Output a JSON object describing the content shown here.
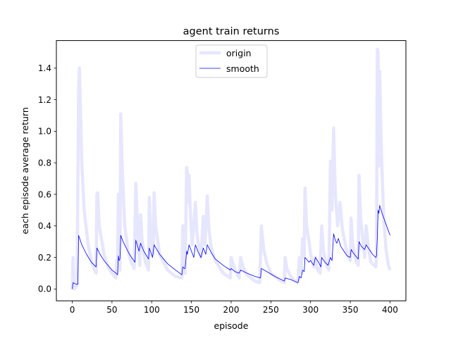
{
  "chart_data": {
    "type": "line",
    "title": "agent train returns",
    "xlabel": "episode",
    "ylabel": "each episode average return",
    "xlim": [
      -20,
      420
    ],
    "ylim": [
      -0.075,
      1.575
    ],
    "xticks": [
      0,
      50,
      100,
      150,
      200,
      250,
      300,
      350,
      400
    ],
    "yticks": [
      0.0,
      0.2,
      0.4,
      0.6,
      0.8,
      1.0,
      1.2,
      1.4
    ],
    "grid": false,
    "legend_position": "top-center",
    "series": [
      {
        "name": "origin",
        "color": "#e6e6ff",
        "points": [
          [
            0,
            0.0
          ],
          [
            1,
            0.2
          ],
          [
            2,
            0.0
          ],
          [
            6,
            0.02
          ],
          [
            8,
            1.28
          ],
          [
            9,
            1.4
          ],
          [
            10,
            1.2
          ],
          [
            12,
            0.8
          ],
          [
            15,
            0.5
          ],
          [
            20,
            0.28
          ],
          [
            25,
            0.16
          ],
          [
            30,
            0.1
          ],
          [
            31,
            0.6
          ],
          [
            32,
            0.61
          ],
          [
            34,
            0.4
          ],
          [
            40,
            0.22
          ],
          [
            45,
            0.14
          ],
          [
            50,
            0.1
          ],
          [
            55,
            0.07
          ],
          [
            56,
            0.18
          ],
          [
            57,
            0.1
          ],
          [
            58,
            0.6
          ],
          [
            59,
            0.18
          ],
          [
            60,
            0.12
          ],
          [
            61,
            1.11
          ],
          [
            63,
            0.75
          ],
          [
            66,
            0.4
          ],
          [
            70,
            0.25
          ],
          [
            74,
            0.17
          ],
          [
            78,
            0.13
          ],
          [
            80,
            0.67
          ],
          [
            82,
            0.42
          ],
          [
            84,
            0.22
          ],
          [
            85,
            0.15
          ],
          [
            86,
            0.47
          ],
          [
            88,
            0.3
          ],
          [
            92,
            0.17
          ],
          [
            96,
            0.12
          ],
          [
            97,
            0.58
          ],
          [
            99,
            0.35
          ],
          [
            102,
            0.22
          ],
          [
            103,
            0.61
          ],
          [
            105,
            0.4
          ],
          [
            110,
            0.22
          ],
          [
            120,
            0.12
          ],
          [
            130,
            0.08
          ],
          [
            138,
            0.07
          ],
          [
            139,
            0.4
          ],
          [
            141,
            0.2
          ],
          [
            142,
            0.1
          ],
          [
            144,
            0.77
          ],
          [
            145,
            0.74
          ],
          [
            146,
            0.55
          ],
          [
            147,
            0.72
          ],
          [
            149,
            0.45
          ],
          [
            151,
            0.28
          ],
          [
            155,
            0.55
          ],
          [
            157,
            0.35
          ],
          [
            160,
            0.24
          ],
          [
            162,
            0.2
          ],
          [
            165,
            0.46
          ],
          [
            167,
            0.28
          ],
          [
            170,
            0.59
          ],
          [
            172,
            0.38
          ],
          [
            175,
            0.26
          ],
          [
            180,
            0.18
          ],
          [
            190,
            0.1
          ],
          [
            199,
            0.07
          ],
          [
            200,
            0.2
          ],
          [
            205,
            0.12
          ],
          [
            210,
            0.07
          ],
          [
            212,
            0.2
          ],
          [
            215,
            0.14
          ],
          [
            220,
            0.09
          ],
          [
            230,
            0.05
          ],
          [
            236,
            0.04
          ],
          [
            238,
            0.4
          ],
          [
            241,
            0.25
          ],
          [
            245,
            0.16
          ],
          [
            250,
            0.1
          ],
          [
            260,
            0.06
          ],
          [
            267,
            0.04
          ],
          [
            268,
            0.2
          ],
          [
            270,
            0.13
          ],
          [
            275,
            0.08
          ],
          [
            280,
            0.05
          ],
          [
            284,
            0.04
          ],
          [
            286,
            0.2
          ],
          [
            288,
            0.1
          ],
          [
            290,
            0.32
          ],
          [
            292,
            0.2
          ],
          [
            293,
            0.64
          ],
          [
            295,
            0.4
          ],
          [
            298,
            0.3
          ],
          [
            300,
            0.22
          ],
          [
            304,
            0.14
          ],
          [
            306,
            0.2
          ],
          [
            308,
            0.13
          ],
          [
            312,
            0.1
          ],
          [
            314,
            0.4
          ],
          [
            316,
            0.25
          ],
          [
            320,
            0.15
          ],
          [
            323,
            0.12
          ],
          [
            325,
            0.81
          ],
          [
            327,
            0.5
          ],
          [
            329,
            1.02
          ],
          [
            331,
            0.62
          ],
          [
            334,
            0.4
          ],
          [
            337,
            0.55
          ],
          [
            340,
            0.38
          ],
          [
            345,
            0.25
          ],
          [
            348,
            0.2
          ],
          [
            350,
            0.18
          ],
          [
            351,
            0.45
          ],
          [
            353,
            0.28
          ],
          [
            357,
            0.18
          ],
          [
            360,
            0.15
          ],
          [
            361,
            0.72
          ],
          [
            363,
            0.45
          ],
          [
            364,
            0.4
          ],
          [
            366,
            0.3
          ],
          [
            368,
            0.2
          ],
          [
            370,
            0.4
          ],
          [
            372,
            0.3
          ],
          [
            374,
            0.22
          ],
          [
            376,
            0.17
          ],
          [
            380,
            0.15
          ],
          [
            382,
            0.14
          ],
          [
            383,
            0.2
          ],
          [
            384,
            1.52
          ],
          [
            385,
            1.5
          ],
          [
            386,
            0.78
          ],
          [
            387,
            1.38
          ],
          [
            389,
            0.9
          ],
          [
            392,
            0.45
          ],
          [
            395,
            0.25
          ],
          [
            398,
            0.15
          ],
          [
            400,
            0.12
          ]
        ]
      },
      {
        "name": "smooth",
        "color": "#0000ff",
        "points": [
          [
            0,
            0.0
          ],
          [
            1,
            0.04
          ],
          [
            5,
            0.03
          ],
          [
            7,
            0.03
          ],
          [
            8,
            0.34
          ],
          [
            12,
            0.28
          ],
          [
            18,
            0.22
          ],
          [
            24,
            0.17
          ],
          [
            30,
            0.14
          ],
          [
            31,
            0.26
          ],
          [
            35,
            0.22
          ],
          [
            40,
            0.18
          ],
          [
            45,
            0.15
          ],
          [
            50,
            0.12
          ],
          [
            55,
            0.1
          ],
          [
            57,
            0.09
          ],
          [
            58,
            0.21
          ],
          [
            59,
            0.18
          ],
          [
            60,
            0.19
          ],
          [
            61,
            0.34
          ],
          [
            64,
            0.3
          ],
          [
            68,
            0.26
          ],
          [
            72,
            0.22
          ],
          [
            76,
            0.19
          ],
          [
            79,
            0.17
          ],
          [
            80,
            0.31
          ],
          [
            84,
            0.24
          ],
          [
            86,
            0.29
          ],
          [
            90,
            0.24
          ],
          [
            96,
            0.19
          ],
          [
            97,
            0.26
          ],
          [
            101,
            0.2
          ],
          [
            103,
            0.28
          ],
          [
            110,
            0.22
          ],
          [
            120,
            0.16
          ],
          [
            130,
            0.12
          ],
          [
            138,
            0.09
          ],
          [
            139,
            0.14
          ],
          [
            141,
            0.13
          ],
          [
            142,
            0.13
          ],
          [
            144,
            0.24
          ],
          [
            145,
            0.22
          ],
          [
            147,
            0.28
          ],
          [
            150,
            0.24
          ],
          [
            153,
            0.2
          ],
          [
            155,
            0.28
          ],
          [
            158,
            0.24
          ],
          [
            162,
            0.2
          ],
          [
            165,
            0.26
          ],
          [
            168,
            0.22
          ],
          [
            170,
            0.28
          ],
          [
            175,
            0.23
          ],
          [
            180,
            0.19
          ],
          [
            190,
            0.15
          ],
          [
            199,
            0.12
          ],
          [
            200,
            0.13
          ],
          [
            205,
            0.11
          ],
          [
            210,
            0.1
          ],
          [
            212,
            0.12
          ],
          [
            220,
            0.1
          ],
          [
            230,
            0.08
          ],
          [
            237,
            0.07
          ],
          [
            238,
            0.13
          ],
          [
            245,
            0.11
          ],
          [
            255,
            0.08
          ],
          [
            267,
            0.05
          ],
          [
            268,
            0.07
          ],
          [
            275,
            0.06
          ],
          [
            284,
            0.04
          ],
          [
            286,
            0.08
          ],
          [
            288,
            0.07
          ],
          [
            290,
            0.12
          ],
          [
            292,
            0.11
          ],
          [
            293,
            0.2
          ],
          [
            298,
            0.17
          ],
          [
            300,
            0.18
          ],
          [
            304,
            0.15
          ],
          [
            306,
            0.2
          ],
          [
            310,
            0.17
          ],
          [
            313,
            0.14
          ],
          [
            314,
            0.2
          ],
          [
            318,
            0.17
          ],
          [
            322,
            0.15
          ],
          [
            325,
            0.2
          ],
          [
            327,
            0.18
          ],
          [
            329,
            0.35
          ],
          [
            331,
            0.31
          ],
          [
            333,
            0.29
          ],
          [
            335,
            0.32
          ],
          [
            338,
            0.27
          ],
          [
            342,
            0.24
          ],
          [
            346,
            0.21
          ],
          [
            350,
            0.2
          ],
          [
            351,
            0.25
          ],
          [
            355,
            0.22
          ],
          [
            360,
            0.19
          ],
          [
            361,
            0.3
          ],
          [
            364,
            0.27
          ],
          [
            366,
            0.26
          ],
          [
            368,
            0.25
          ],
          [
            370,
            0.28
          ],
          [
            374,
            0.25
          ],
          [
            378,
            0.22
          ],
          [
            382,
            0.2
          ],
          [
            383,
            0.21
          ],
          [
            384,
            0.33
          ],
          [
            385,
            0.5
          ],
          [
            386,
            0.48
          ],
          [
            387,
            0.53
          ],
          [
            390,
            0.48
          ],
          [
            395,
            0.41
          ],
          [
            400,
            0.34
          ]
        ]
      }
    ]
  }
}
